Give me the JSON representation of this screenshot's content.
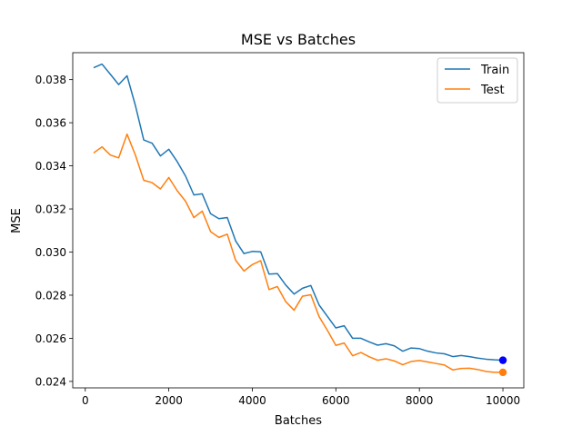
{
  "chart_data": {
    "type": "line",
    "title": "MSE vs Batches",
    "xlabel": "Batches",
    "ylabel": "MSE",
    "xlim": [
      -300,
      10500
    ],
    "ylim": [
      0.0237,
      0.03925
    ],
    "x_ticks": [
      0,
      2000,
      4000,
      6000,
      8000,
      10000
    ],
    "x_tick_labels": [
      "0",
      "2000",
      "4000",
      "6000",
      "8000",
      "10000"
    ],
    "y_ticks": [
      0.024,
      0.026,
      0.028,
      0.03,
      0.032,
      0.034,
      0.036,
      0.038
    ],
    "y_tick_labels": [
      "0.024",
      "0.026",
      "0.028",
      "0.030",
      "0.032",
      "0.034",
      "0.036",
      "0.038"
    ],
    "grid": false,
    "legend": {
      "position": "top-right"
    },
    "x": [
      200,
      400,
      600,
      800,
      1000,
      1200,
      1400,
      1600,
      1800,
      2000,
      2200,
      2400,
      2600,
      2800,
      3000,
      3200,
      3400,
      3600,
      3800,
      4000,
      4200,
      4400,
      4600,
      4800,
      5000,
      5200,
      5400,
      5600,
      5800,
      6000,
      6200,
      6400,
      6600,
      6800,
      7000,
      7200,
      7400,
      7600,
      7800,
      8000,
      8200,
      8400,
      8600,
      8800,
      9000,
      9200,
      9400,
      9600,
      9800,
      10000
    ],
    "series": [
      {
        "name": "Train",
        "color": "#1f77b4",
        "values": [
          0.03855,
          0.03872,
          0.03825,
          0.03777,
          0.03818,
          0.0368,
          0.0352,
          0.03505,
          0.03446,
          0.03477,
          0.0342,
          0.03353,
          0.03265,
          0.0327,
          0.03178,
          0.03155,
          0.0316,
          0.03052,
          0.02993,
          0.03003,
          0.03001,
          0.02898,
          0.029,
          0.02847,
          0.02805,
          0.02832,
          0.02845,
          0.02754,
          0.02701,
          0.02648,
          0.02658,
          0.026,
          0.026,
          0.02583,
          0.02568,
          0.02575,
          0.02565,
          0.0254,
          0.02555,
          0.02552,
          0.0254,
          0.02532,
          0.02528,
          0.02515,
          0.0252,
          0.02515,
          0.02508,
          0.02503,
          0.025,
          0.02498
        ],
        "end_marker_color": "#0000ff"
      },
      {
        "name": "Test",
        "color": "#ff7f0e",
        "values": [
          0.0346,
          0.03488,
          0.0345,
          0.03437,
          0.03547,
          0.0345,
          0.03333,
          0.03322,
          0.03293,
          0.03346,
          0.03285,
          0.03236,
          0.0316,
          0.0319,
          0.03095,
          0.03068,
          0.03083,
          0.02962,
          0.02912,
          0.02942,
          0.0296,
          0.02826,
          0.0284,
          0.0277,
          0.0273,
          0.02795,
          0.02802,
          0.027,
          0.02636,
          0.02567,
          0.02578,
          0.02519,
          0.02534,
          0.02514,
          0.02498,
          0.02505,
          0.02495,
          0.02477,
          0.02492,
          0.02497,
          0.0249,
          0.02483,
          0.02476,
          0.02453,
          0.0246,
          0.02461,
          0.02455,
          0.02446,
          0.02442,
          0.02442
        ],
        "end_marker_color": "#ff7f0e"
      }
    ]
  }
}
